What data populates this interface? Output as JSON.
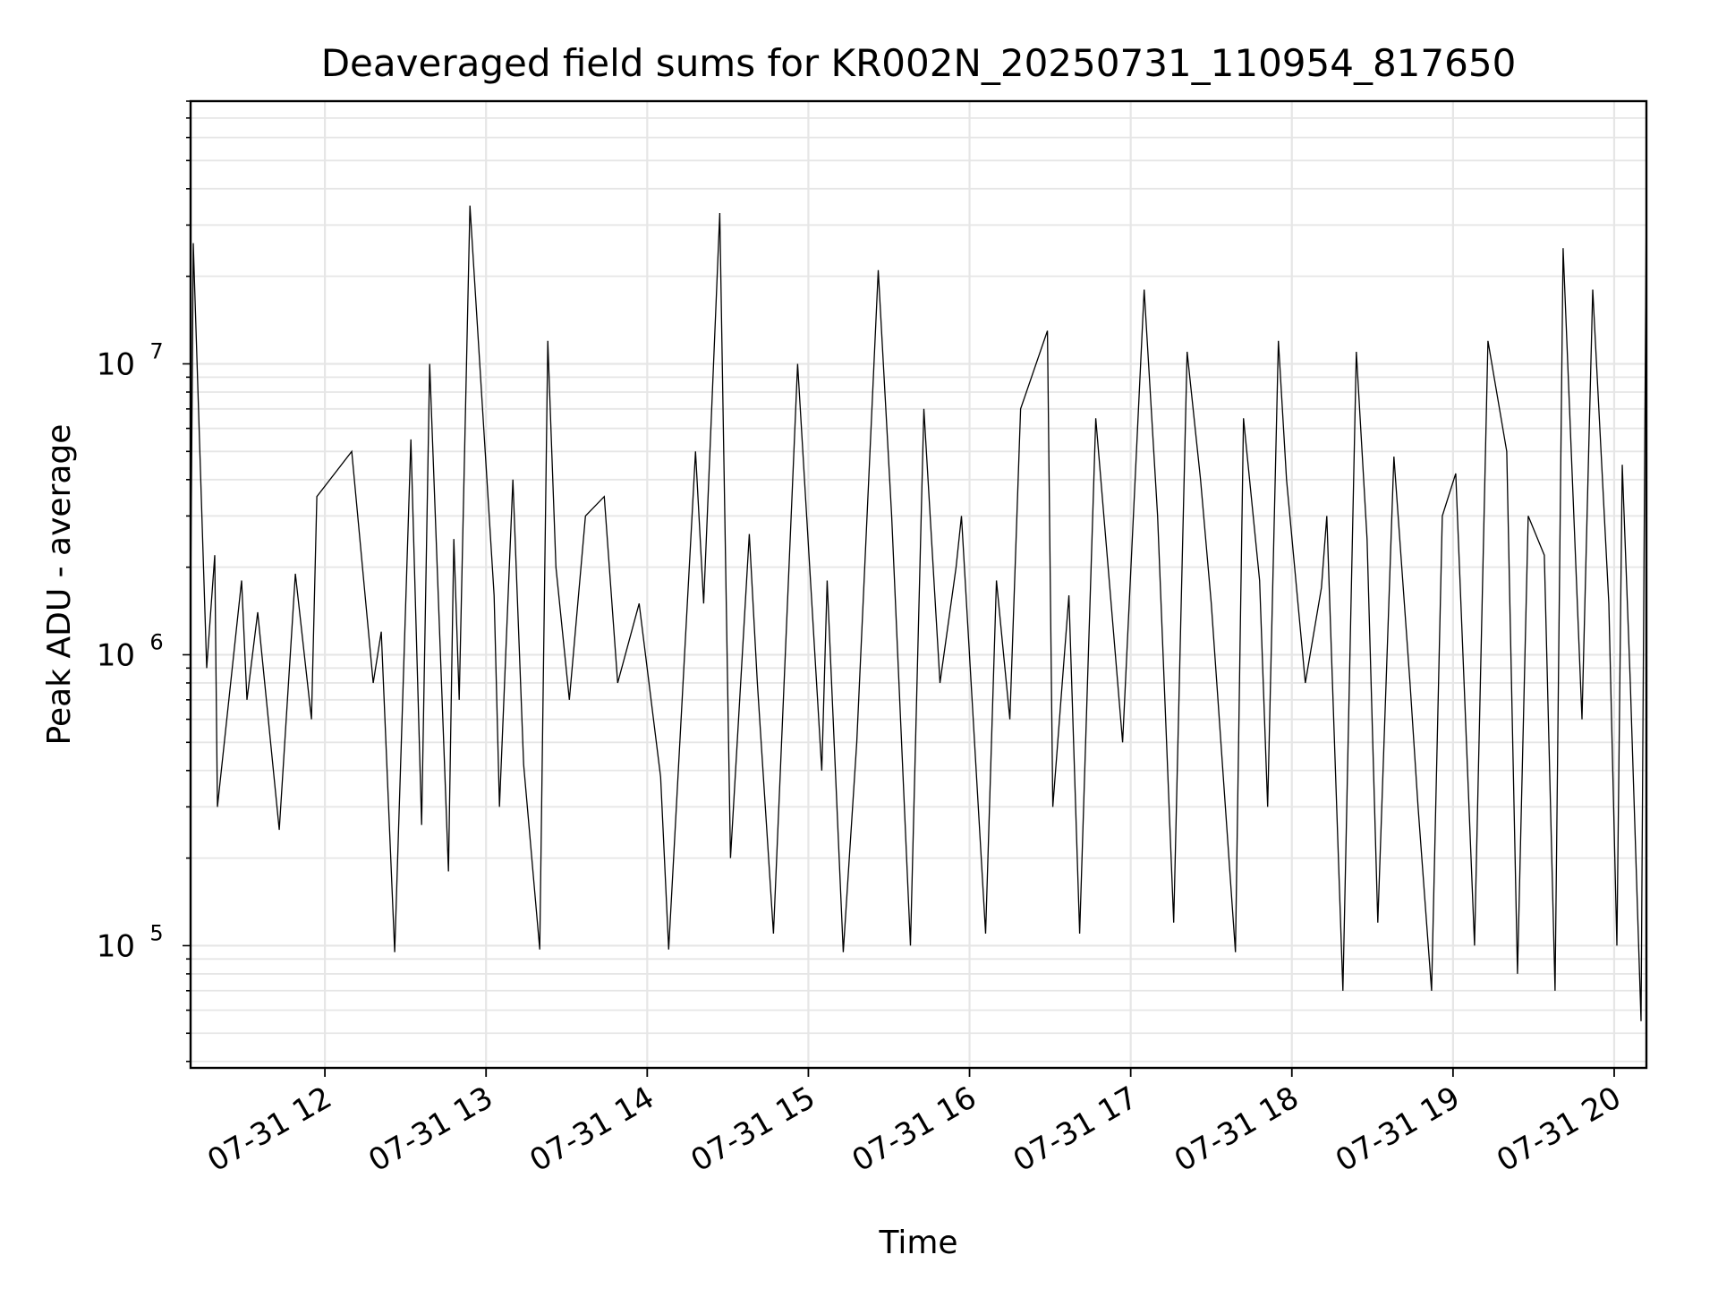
{
  "chart_data": {
    "type": "line",
    "title": "Deaveraged field sums for KR002N_20250731_110954_817650",
    "xlabel": "Time",
    "ylabel": "Peak ADU - average",
    "x_range": [
      "07-31 11:10",
      "07-31 20:12"
    ],
    "ylim": [
      38000,
      80000000
    ],
    "y_scale": "log",
    "grid": true,
    "line_color": "#000000",
    "grid_color": "#e6e6e6",
    "x_ticks": [
      {
        "t": "07-31 12:00",
        "label": "07-31 12"
      },
      {
        "t": "07-31 13:00",
        "label": "07-31 13"
      },
      {
        "t": "07-31 14:00",
        "label": "07-31 14"
      },
      {
        "t": "07-31 15:00",
        "label": "07-31 15"
      },
      {
        "t": "07-31 16:00",
        "label": "07-31 16"
      },
      {
        "t": "07-31 17:00",
        "label": "07-31 17"
      },
      {
        "t": "07-31 18:00",
        "label": "07-31 18"
      },
      {
        "t": "07-31 19:00",
        "label": "07-31 19"
      },
      {
        "t": "07-31 20:00",
        "label": "07-31 20"
      }
    ],
    "y_ticks": [
      {
        "value": 100000,
        "base": "10",
        "exp": "5"
      },
      {
        "value": 1000000,
        "base": "10",
        "exp": "6"
      },
      {
        "value": 10000000,
        "base": "10",
        "exp": "7"
      }
    ],
    "series": [
      {
        "x": [
          "07-31 11:10",
          "07-31 11:11",
          "07-31 11:16",
          "07-31 11:19",
          "07-31 11:20",
          "07-31 11:29",
          "07-31 11:31",
          "07-31 11:35",
          "07-31 11:43",
          "07-31 11:49",
          "07-31 11:55",
          "07-31 11:57",
          "07-31 12:10",
          "07-31 12:18",
          "07-31 12:21",
          "07-31 12:26",
          "07-31 12:32",
          "07-31 12:36",
          "07-31 12:39",
          "07-31 12:46",
          "07-31 12:48",
          "07-31 12:50",
          "07-31 12:54",
          "07-31 13:03",
          "07-31 13:05",
          "07-31 13:10",
          "07-31 13:14",
          "07-31 13:20",
          "07-31 13:23",
          "07-31 13:26",
          "07-31 13:31",
          "07-31 13:37",
          "07-31 13:44",
          "07-31 13:49",
          "07-31 13:57",
          "07-31 14:05",
          "07-31 14:08",
          "07-31 14:18",
          "07-31 14:21",
          "07-31 14:27",
          "07-31 14:31",
          "07-31 14:38",
          "07-31 14:41",
          "07-31 14:47",
          "07-31 14:56",
          "07-31 15:05",
          "07-31 15:07",
          "07-31 15:13",
          "07-31 15:18",
          "07-31 15:26",
          "07-31 15:31",
          "07-31 15:38",
          "07-31 15:43",
          "07-31 15:49",
          "07-31 15:55",
          "07-31 15:57",
          "07-31 16:06",
          "07-31 16:10",
          "07-31 16:15",
          "07-31 16:19",
          "07-31 16:29",
          "07-31 16:31",
          "07-31 16:37",
          "07-31 16:41",
          "07-31 16:47",
          "07-31 16:53",
          "07-31 16:57",
          "07-31 17:05",
          "07-31 17:10",
          "07-31 17:16",
          "07-31 17:21",
          "07-31 17:26",
          "07-31 17:30",
          "07-31 17:39",
          "07-31 17:42",
          "07-31 17:48",
          "07-31 17:51",
          "07-31 17:55",
          "07-31 17:58",
          "07-31 18:05",
          "07-31 18:11",
          "07-31 18:13",
          "07-31 18:19",
          "07-31 18:24",
          "07-31 18:28",
          "07-31 18:32",
          "07-31 18:38",
          "07-31 18:44",
          "07-31 18:47",
          "07-31 18:52",
          "07-31 18:56",
          "07-31 19:01",
          "07-31 19:08",
          "07-31 19:13",
          "07-31 19:20",
          "07-31 19:24",
          "07-31 19:28",
          "07-31 19:34",
          "07-31 19:38",
          "07-31 19:41",
          "07-31 19:48",
          "07-31 19:52",
          "07-31 19:58",
          "07-31 20:01",
          "07-31 20:03",
          "07-31 20:06",
          "07-31 20:10",
          "07-31 20:12"
        ],
        "y": [
          1500000,
          26000000,
          900000,
          2200000,
          300000,
          1800000,
          700000,
          1400000,
          250000,
          1900000,
          600000,
          3500000,
          5000000,
          800000,
          1200000,
          95000,
          5500000,
          260000,
          10000000,
          180000,
          2500000,
          700000,
          35000000,
          1600000,
          300000,
          4000000,
          420000,
          97000,
          12000000,
          2000000,
          700000,
          3000000,
          3500000,
          800000,
          1500000,
          380000,
          97000,
          5000000,
          1500000,
          33000000,
          200000,
          2600000,
          800000,
          110000,
          10000000,
          400000,
          1800000,
          95000,
          500000,
          21000000,
          3000000,
          100000,
          7000000,
          800000,
          2000000,
          3000000,
          110000,
          1800000,
          600000,
          7000000,
          13000000,
          300000,
          1600000,
          110000,
          6500000,
          1400000,
          500000,
          18000000,
          3000000,
          120000,
          11000000,
          4000000,
          1500000,
          95000,
          6500000,
          1800000,
          300000,
          12000000,
          4000000,
          800000,
          1700000,
          3000000,
          70000,
          11000000,
          2500000,
          120000,
          4800000,
          800000,
          300000,
          70000,
          3000000,
          4200000,
          100000,
          12000000,
          5000000,
          80000,
          3000000,
          2200000,
          70000,
          25000000,
          600000,
          18000000,
          1500000,
          100000,
          4500000,
          800000,
          55000,
          40000000
        ],
        "color": "#000000"
      }
    ]
  }
}
